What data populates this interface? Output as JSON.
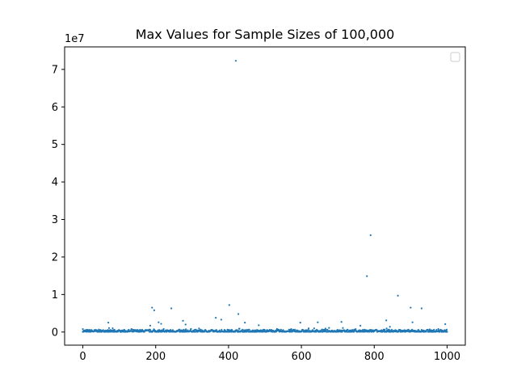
{
  "chart_data": {
    "type": "scatter",
    "title": "Max Values for Sample Sizes of 100,000",
    "xlabel": "",
    "ylabel": "",
    "y_offset_label": "1e7",
    "xlim": [
      -50,
      1050
    ],
    "ylim": [
      -0.35,
      7.6
    ],
    "y_unit_multiplier": 10000000,
    "x_ticks": [
      0,
      200,
      400,
      600,
      800,
      1000
    ],
    "x_tick_labels": [
      "0",
      "200",
      "400",
      "600",
      "800",
      "1000"
    ],
    "y_ticks": [
      0,
      1,
      2,
      3,
      4,
      5,
      6,
      7
    ],
    "y_tick_labels": [
      "0",
      "1",
      "2",
      "3",
      "4",
      "5",
      "6",
      "7"
    ],
    "legend": "top-right (empty)",
    "grid": false,
    "marker_color": "#1f77b4",
    "outliers": [
      {
        "x": 0,
        "y": 0.08
      },
      {
        "x": 70,
        "y": 0.25
      },
      {
        "x": 185,
        "y": 0.17
      },
      {
        "x": 190,
        "y": 0.65
      },
      {
        "x": 196,
        "y": 0.58
      },
      {
        "x": 208,
        "y": 0.26
      },
      {
        "x": 215,
        "y": 0.22
      },
      {
        "x": 243,
        "y": 0.63
      },
      {
        "x": 275,
        "y": 0.3
      },
      {
        "x": 282,
        "y": 0.2
      },
      {
        "x": 365,
        "y": 0.38
      },
      {
        "x": 380,
        "y": 0.33
      },
      {
        "x": 402,
        "y": 0.72
      },
      {
        "x": 420,
        "y": 7.23
      },
      {
        "x": 427,
        "y": 0.48
      },
      {
        "x": 445,
        "y": 0.25
      },
      {
        "x": 483,
        "y": 0.18
      },
      {
        "x": 597,
        "y": 0.25
      },
      {
        "x": 645,
        "y": 0.26
      },
      {
        "x": 710,
        "y": 0.27
      },
      {
        "x": 762,
        "y": 0.17
      },
      {
        "x": 780,
        "y": 1.49
      },
      {
        "x": 790,
        "y": 2.58
      },
      {
        "x": 833,
        "y": 0.31
      },
      {
        "x": 843,
        "y": 0.14
      },
      {
        "x": 865,
        "y": 0.97
      },
      {
        "x": 900,
        "y": 0.65
      },
      {
        "x": 905,
        "y": 0.26
      },
      {
        "x": 930,
        "y": 0.63
      },
      {
        "x": 995,
        "y": 0.21
      }
    ],
    "baseline_note": "about 1000 points (x = 0 to 1000) forming a dense band near y ≈ 0 to 0.1 (×1e7)"
  }
}
